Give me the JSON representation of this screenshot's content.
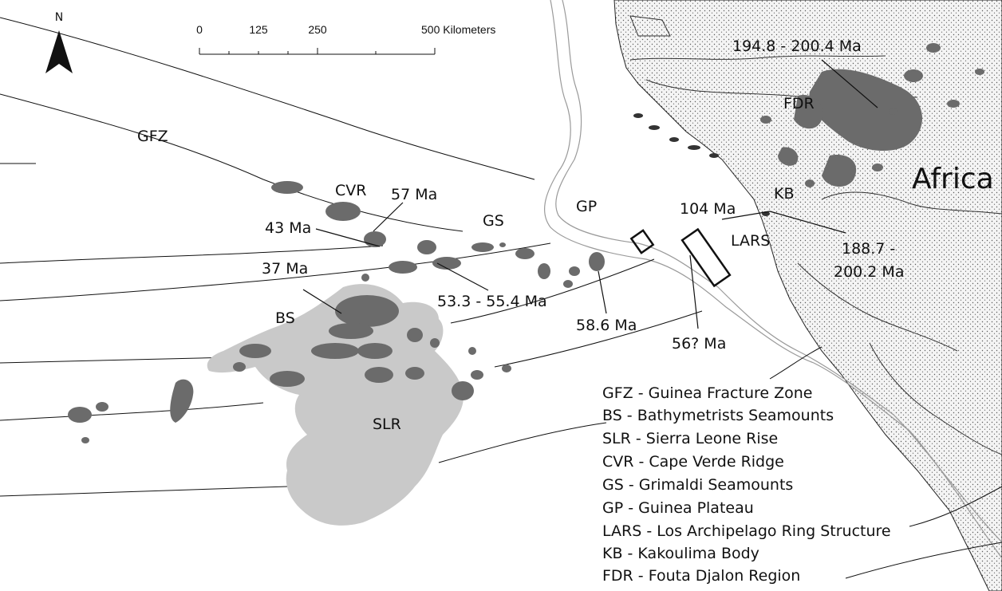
{
  "north_arrow": {
    "letter": "N"
  },
  "scale_bar": {
    "ticks": [
      "0",
      "125",
      "250",
      "500 Kilometers"
    ]
  },
  "colors": {
    "land": "#f4f4f4",
    "land_stipple": "#5a5a5a",
    "volcanic": "#6b6b6b",
    "rise": "#c9c9c9",
    "outline": "#222222",
    "shelf": "#9a9a9a"
  },
  "labels": {
    "africa": "Africa",
    "gfz": "GFZ",
    "cvr": "CVR",
    "gs": "GS",
    "gp": "GP",
    "bs": "BS",
    "slr": "SLR",
    "fdr": "FDR",
    "kb": "KB",
    "lars": "LARS"
  },
  "ages": {
    "age_57": "57 Ma",
    "age_43": "43 Ma",
    "age_37": "37 Ma",
    "age_53": "53.3 - 55.4 Ma",
    "age_586": "58.6 Ma",
    "age_56": "56? Ma",
    "age_104": "104 Ma",
    "age_1887_a": "188.7 -",
    "age_1887_b": "200.2 Ma",
    "age_1948": "194.8 - 200.4 Ma"
  },
  "legend": [
    "GFZ - Guinea Fracture Zone",
    "BS - Bathymetrists Seamounts",
    "SLR - Sierra Leone Rise",
    "CVR - Cape Verde Ridge",
    "GS - Grimaldi Seamounts",
    "GP - Guinea Plateau",
    "LARS - Los Archipelago Ring Structure",
    "KB - Kakoulima Body",
    "FDR - Fouta Djalon Region"
  ]
}
